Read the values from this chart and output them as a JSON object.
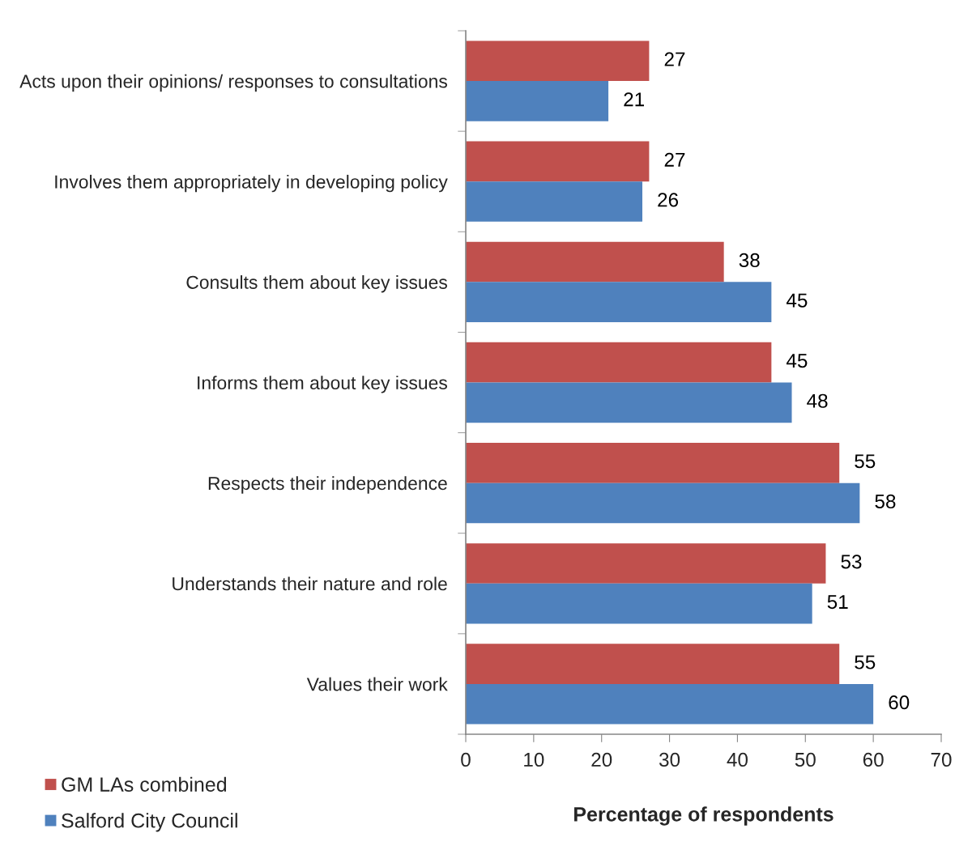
{
  "chart_data": {
    "type": "bar",
    "orientation": "horizontal",
    "categories": [
      "Acts upon their opinions/ responses to consultations",
      "Involves them appropriately in developing policy",
      "Consults them about key issues",
      "Informs them about key issues",
      "Respects their independence",
      "Understands their nature and role",
      "Values their work"
    ],
    "series": [
      {
        "name": "GM LAs combined",
        "color": "#c0504d",
        "values": [
          27,
          27,
          38,
          45,
          55,
          53,
          55
        ]
      },
      {
        "name": "Salford City Council",
        "color": "#4f81bd",
        "values": [
          21,
          26,
          45,
          48,
          58,
          51,
          60
        ]
      }
    ],
    "xlabel": "Percentage of respondents",
    "xlim": [
      0,
      70
    ],
    "xticks": [
      0,
      10,
      20,
      30,
      40,
      50,
      60,
      70
    ],
    "data_labels": true,
    "grid": false,
    "legend": "bottom left"
  }
}
